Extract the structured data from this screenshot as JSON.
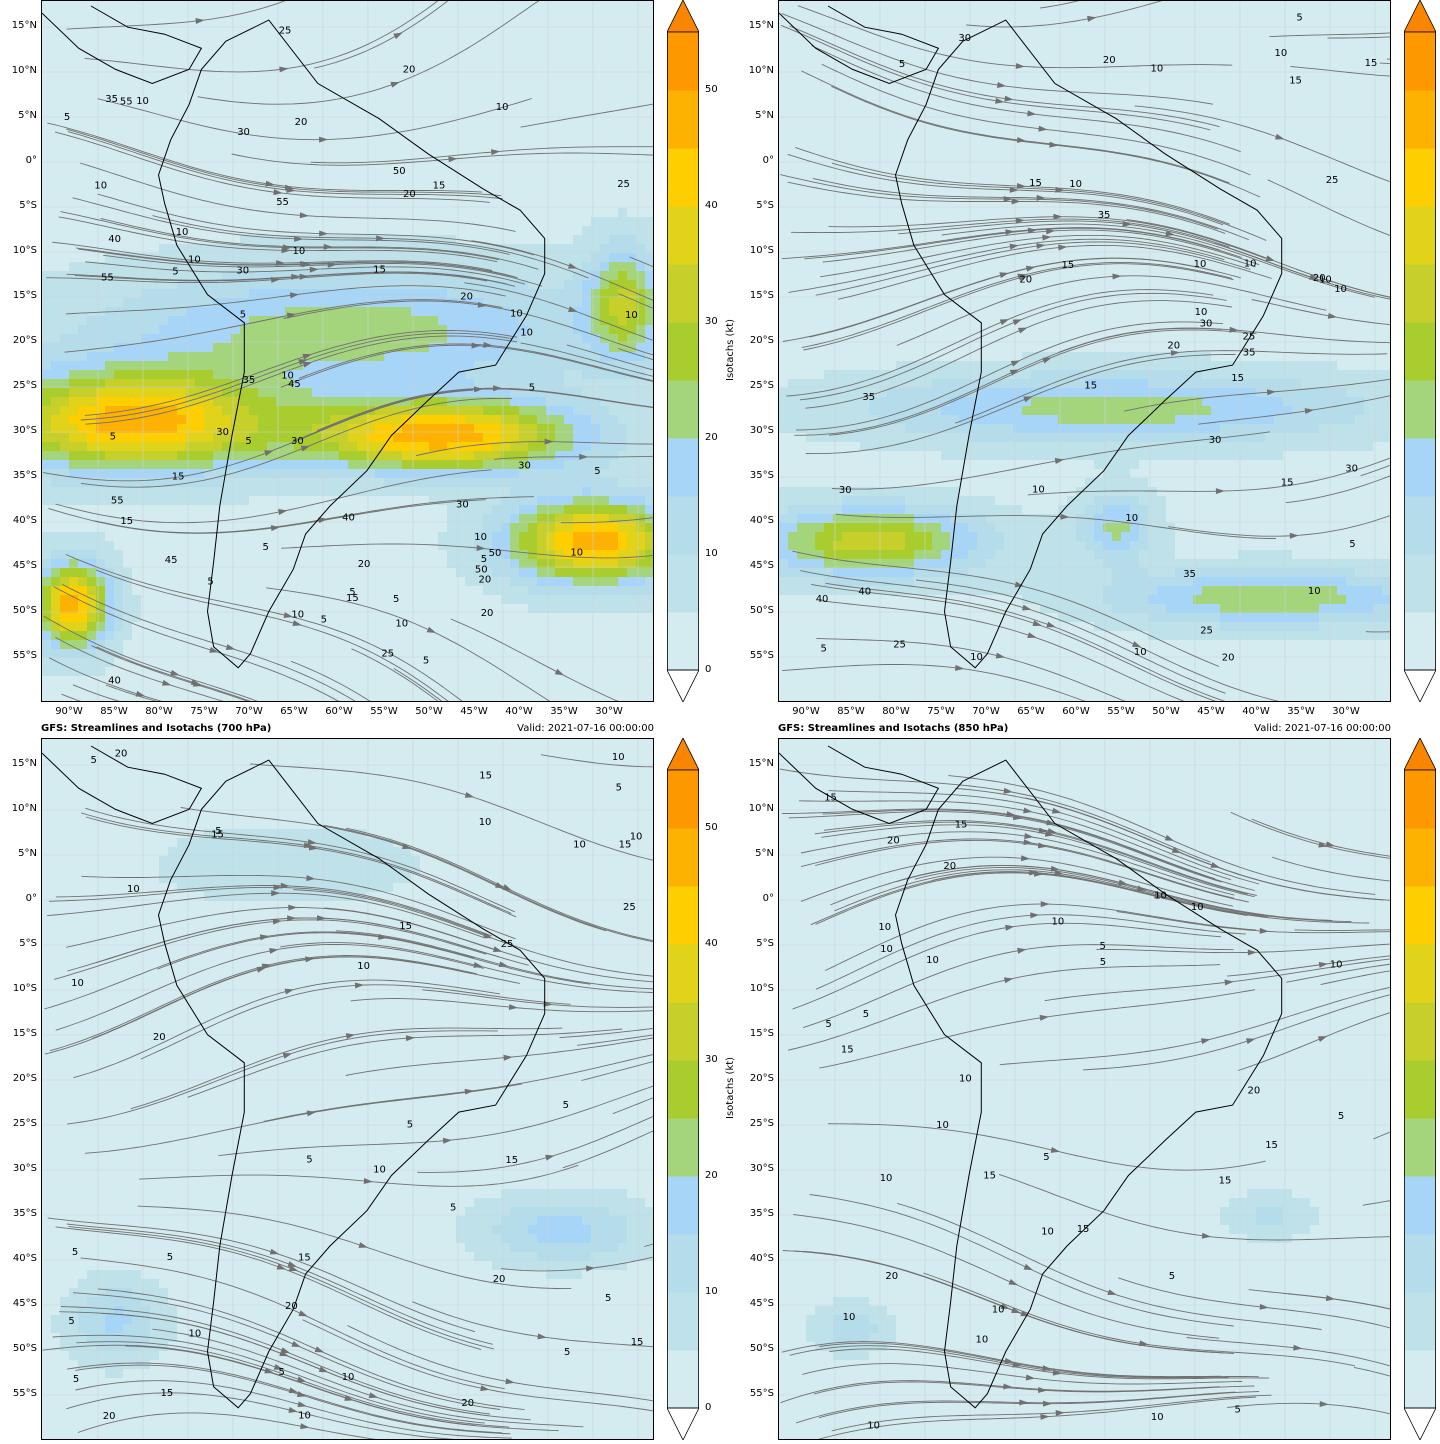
{
  "panels": [
    {
      "id": "p1",
      "title": "",
      "valid": "",
      "lat_labels": [
        "15°N",
        "10°N",
        "5°N",
        "0°",
        "5°S",
        "10°S",
        "15°S",
        "20°S",
        "25°S",
        "30°S",
        "35°S",
        "40°S",
        "45°S",
        "50°S",
        "55°S"
      ],
      "lon_labels": [
        "90°W",
        "85°W",
        "80°W",
        "75°W",
        "70°W",
        "65°W",
        "60°W",
        "55°W",
        "50°W",
        "45°W",
        "40°W",
        "35°W",
        "30°W"
      ],
      "colorbar_ticks": [
        "0",
        "10",
        "20",
        "30",
        "40",
        "50"
      ],
      "colorbar_label": "Isotachs (kt)",
      "contour_labels": [
        "10",
        "20",
        "15",
        "5",
        "10",
        "15",
        "5",
        "5",
        "10",
        "10",
        "15",
        "10",
        "5",
        "5",
        "10",
        "10",
        "10",
        "5",
        "5",
        "10",
        "10",
        "5",
        "5",
        "5",
        "5",
        "5",
        "20",
        "25",
        "30",
        "30",
        "35",
        "30",
        "30",
        "40",
        "50",
        "55",
        "55",
        "50",
        "45",
        "30",
        "40",
        "45",
        "35",
        "55",
        "55",
        "50",
        "40",
        "30",
        "25",
        "20",
        "15",
        "10",
        "10",
        "20",
        "25",
        "5",
        "5",
        "10",
        "15",
        "20",
        "20",
        "20",
        "10"
      ]
    },
    {
      "id": "p2",
      "title": "",
      "valid": "",
      "lat_labels": [
        "15°N",
        "10°N",
        "5°N",
        "0°",
        "5°S",
        "10°S",
        "15°S",
        "20°S",
        "25°S",
        "30°S",
        "35°S",
        "40°S",
        "45°S",
        "50°S",
        "55°S"
      ],
      "lon_labels": [
        "90°W",
        "85°W",
        "80°W",
        "75°W",
        "70°W",
        "65°W",
        "60°W",
        "55°W",
        "50°W",
        "45°W",
        "40°W",
        "35°W",
        "30°W"
      ],
      "colorbar_ticks": [],
      "colorbar_label": "",
      "contour_labels": [
        "10",
        "10",
        "15",
        "15",
        "10",
        "5",
        "10",
        "15",
        "10",
        "10",
        "10",
        "10",
        "5",
        "10",
        "10",
        "25",
        "20",
        "30",
        "35",
        "30",
        "35",
        "20",
        "30",
        "40",
        "35",
        "30",
        "25",
        "20",
        "25",
        "15",
        "15",
        "10",
        "10",
        "10",
        "5",
        "5",
        "20",
        "15",
        "15",
        "25",
        "20",
        "30",
        "35",
        "40"
      ]
    },
    {
      "id": "p3",
      "title": "GFS: Streamlines and Isotachs (700 hPa)",
      "valid": "Valid: 2021-07-16 00:00:00",
      "lat_labels": [
        "15°N",
        "10°N",
        "5°N",
        "0°",
        "5°S",
        "10°S",
        "15°S",
        "20°S",
        "25°S",
        "30°S",
        "35°S",
        "40°S",
        "45°S",
        "50°S",
        "55°S"
      ],
      "lon_labels": [],
      "colorbar_ticks": [
        "0",
        "10",
        "20",
        "30",
        "40",
        "50"
      ],
      "colorbar_label": "Isotachs (kt)",
      "contour_labels": [
        "10",
        "5",
        "15",
        "10",
        "5",
        "10",
        "5",
        "5",
        "10",
        "5",
        "5",
        "10",
        "5",
        "10",
        "15",
        "5",
        "5",
        "5",
        "10",
        "15",
        "20",
        "25",
        "20",
        "25",
        "15",
        "20",
        "20",
        "15",
        "10",
        "20",
        "15",
        "20",
        "5",
        "10",
        "5",
        "15",
        "10",
        "15",
        "5",
        "10",
        "5"
      ]
    },
    {
      "id": "p4",
      "title": "GFS: Streamlines and Isotachs (850 hPa)",
      "valid": "Valid: 2021-07-16 00:00:00",
      "lat_labels": [
        "15°N",
        "10°N",
        "5°N",
        "0°",
        "5°S",
        "10°S",
        "15°S",
        "20°S",
        "25°S",
        "30°S",
        "35°S",
        "40°S",
        "45°S",
        "50°S",
        "55°S"
      ],
      "lon_labels": [],
      "colorbar_ticks": [],
      "colorbar_label": "",
      "contour_labels": [
        "10",
        "10",
        "10",
        "10",
        "5",
        "10",
        "5",
        "5",
        "10",
        "5",
        "10",
        "10",
        "10",
        "5",
        "10",
        "10",
        "15",
        "20",
        "20",
        "20",
        "15",
        "15",
        "10",
        "15",
        "20",
        "10",
        "15",
        "15",
        "5",
        "5",
        "10",
        "15",
        "5",
        "10",
        "10"
      ]
    }
  ],
  "colorscale": {
    "bins": [
      0,
      5,
      10,
      15,
      20,
      25,
      30,
      35,
      40,
      45,
      50,
      55
    ],
    "colors": [
      "#e8f3f6",
      "#d4ebf0",
      "#bfe2ea",
      "#b4dcea",
      "#a7d5f7",
      "#a4d57c",
      "#a9cd2e",
      "#c7d02a",
      "#e0d31a",
      "#fdcf00",
      "#fdb100",
      "#fd9800",
      "#f98500"
    ]
  },
  "icons": {
    "colorbar_extend_top": "triangle-up",
    "colorbar_extend_bottom": "triangle-down"
  }
}
